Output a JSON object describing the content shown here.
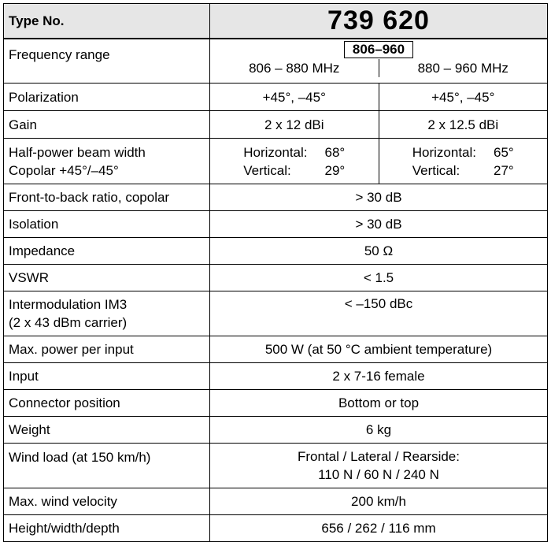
{
  "header": {
    "label": "Type No.",
    "number": "739 620"
  },
  "frequency": {
    "label": "Frequency range",
    "band": "806–960",
    "sub_left": "806 – 880 MHz",
    "sub_right": "880 – 960 MHz"
  },
  "polarization": {
    "label": "Polarization",
    "left": "+45°, –45°",
    "right": "+45°, –45°"
  },
  "gain": {
    "label": "Gain",
    "left": "2 x 12 dBi",
    "right": "2 x 12.5 dBi"
  },
  "beamwidth": {
    "label_line1": "Half-power beam width",
    "label_line2": "Copolar +45°/–45°",
    "left": {
      "h_label": "Horizontal:",
      "h_value": "68°",
      "v_label": "Vertical:",
      "v_value": "29°"
    },
    "right": {
      "h_label": "Horizontal:",
      "h_value": "65°",
      "v_label": "Vertical:",
      "v_value": "27°"
    }
  },
  "rows": [
    {
      "label": "Front-to-back ratio, copolar",
      "value": "> 30 dB"
    },
    {
      "label": "Isolation",
      "value": "> 30 dB"
    },
    {
      "label": "Impedance",
      "value": "50 Ω"
    },
    {
      "label": "VSWR",
      "value": "< 1.5"
    }
  ],
  "intermod": {
    "label_line1": "Intermodulation IM3",
    "label_line2": "(2 x 43 dBm carrier)",
    "value": "< –150 dBc"
  },
  "rows2": [
    {
      "label": "Max. power per input",
      "value": "500 W (at 50 °C ambient temperature)"
    },
    {
      "label": "Input",
      "value": "2 x 7-16 female"
    },
    {
      "label": "Connector position",
      "value": "Bottom or top"
    },
    {
      "label": "Weight",
      "value": "6 kg"
    }
  ],
  "windload": {
    "label": "Wind load (at 150 km/h)",
    "value_line1": "Frontal / Lateral / Rearside:",
    "value_line2": "110 N / 60 N / 240 N"
  },
  "rows3": [
    {
      "label": "Max. wind velocity",
      "value": "200 km/h"
    },
    {
      "label": "Height/width/depth",
      "value": "656 / 262 / 116 mm"
    }
  ]
}
